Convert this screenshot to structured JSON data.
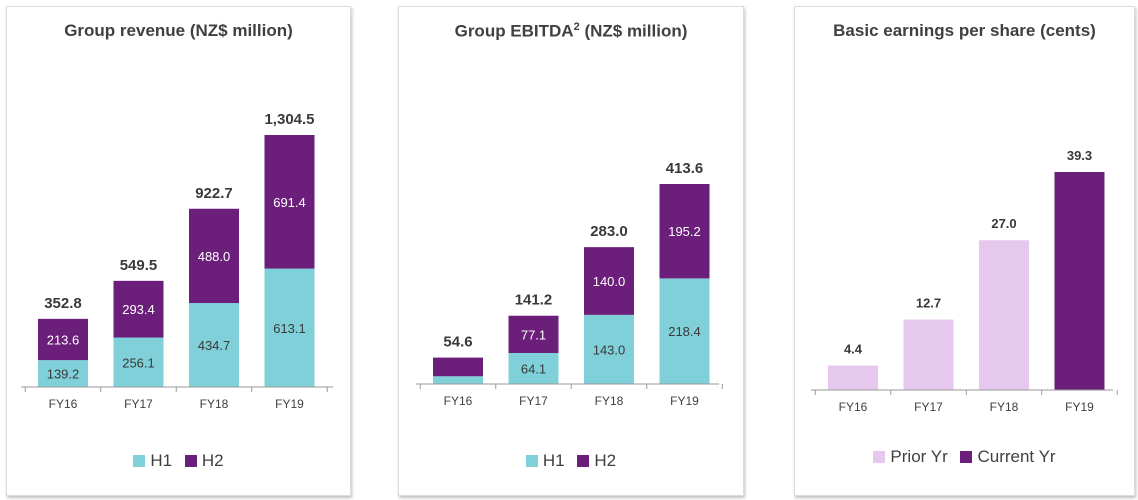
{
  "colors": {
    "h1": "#7fd0d9",
    "h2": "#6b1f7a",
    "prior": "#e6c8ef",
    "current": "#6b1f7a",
    "axis": "#9a9a9a"
  },
  "panels": {
    "revenue": {
      "title": "Group revenue (NZ$ million)",
      "legend": [
        "H1",
        "H2"
      ]
    },
    "ebitda": {
      "title": "Group EBITDA",
      "title_sup": "2",
      "title_suffix": " (NZ$ million)",
      "legend": [
        "H1",
        "H2"
      ]
    },
    "eps": {
      "title": "Basic earnings per share (cents)",
      "legend": [
        "Prior Yr",
        "Current Yr"
      ]
    }
  },
  "chart_data": [
    {
      "type": "bar",
      "stacked": true,
      "title": "Group revenue (NZ$ million)",
      "categories": [
        "FY16",
        "FY17",
        "FY18",
        "FY19"
      ],
      "series": [
        {
          "name": "H1",
          "values": [
            139.2,
            256.1,
            434.7,
            613.1
          ],
          "labels": [
            "139.2",
            "256.1",
            "434.7",
            "613.1"
          ]
        },
        {
          "name": "H2",
          "values": [
            213.6,
            293.4,
            488.0,
            691.4
          ],
          "labels": [
            "213.6",
            "293.4",
            "488.0",
            "691.4"
          ]
        }
      ],
      "totals": [
        "352.8",
        "549.5",
        "922.7",
        "1,304.5"
      ],
      "total_values": [
        352.8,
        549.5,
        922.7,
        1304.5
      ],
      "ylim": [
        0,
        1304.5
      ]
    },
    {
      "type": "bar",
      "stacked": true,
      "title": "Group EBITDA2 (NZ$ million)",
      "categories": [
        "FY16",
        "FY17",
        "FY18",
        "FY19"
      ],
      "series": [
        {
          "name": "H1",
          "values": [
            16.0,
            64.1,
            143.0,
            218.4
          ],
          "labels": [
            "",
            "64.1",
            "143.0",
            "218.4"
          ]
        },
        {
          "name": "H2",
          "values": [
            38.6,
            77.1,
            140.0,
            195.2
          ],
          "labels": [
            "",
            "77.1",
            "140.0",
            "195.2"
          ]
        }
      ],
      "totals": [
        "54.6",
        "141.2",
        "283.0",
        "413.6"
      ],
      "total_values": [
        54.6,
        141.2,
        283.0,
        413.6
      ],
      "ylim": [
        0,
        413.6
      ]
    },
    {
      "type": "bar",
      "stacked": false,
      "title": "Basic earnings per share (cents)",
      "categories": [
        "FY16",
        "FY17",
        "FY18",
        "FY19"
      ],
      "values": [
        4.4,
        12.7,
        27.0,
        39.3
      ],
      "labels": [
        "4.4",
        "12.7",
        "27.0",
        "39.3"
      ],
      "series_names": [
        "Prior Yr",
        "Prior Yr",
        "Prior Yr",
        "Current Yr"
      ],
      "ylim": [
        0,
        39.3
      ]
    }
  ]
}
